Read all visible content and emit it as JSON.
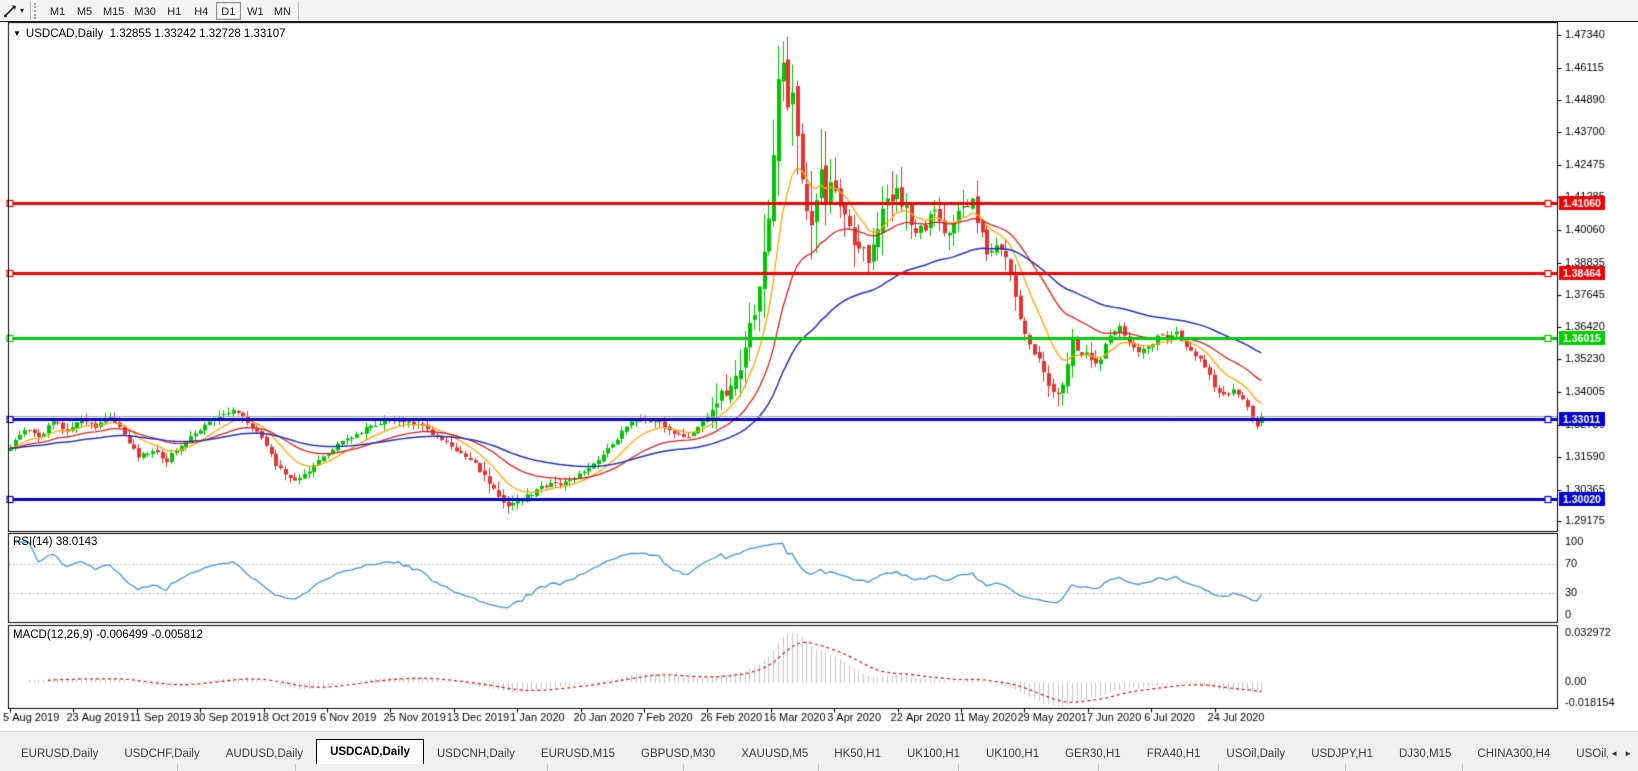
{
  "toolbar": {
    "cursor_tool_icon": "cursor-tool",
    "dropdown_caret": "▾",
    "timeframes": [
      "M1",
      "M5",
      "M15",
      "M30",
      "H1",
      "H4",
      "D1",
      "W1",
      "MN"
    ],
    "active_timeframe": "D1"
  },
  "chart": {
    "symbol_timeframe": "USDCAD,Daily",
    "ohlc_text": "1.32855 1.33242 1.32728 1.33107",
    "open": "1.32855",
    "high": "1.33242",
    "low": "1.32728",
    "close": "1.33107",
    "dropdown_icon": "▼"
  },
  "indicators": {
    "rsi": {
      "label": "RSI(14) 38.0143",
      "name": "RSI",
      "period": 14,
      "current": 38.0143,
      "axis_labels": [
        "100",
        "70",
        "30",
        "0"
      ],
      "level_values": [
        100,
        70,
        30,
        0
      ],
      "dashed_levels": [
        70,
        30
      ],
      "line_color": "#4494E2"
    },
    "macd": {
      "label": "MACD(12,26,9) -0.006499 -0.005812",
      "name": "MACD",
      "fast": 12,
      "slow": 26,
      "signal_period": 9,
      "current_macd": -0.006499,
      "current_signal": -0.005812,
      "axis_labels": [
        "0.032972",
        "0.00",
        "-0.018154"
      ],
      "axis_values": [
        0.032972,
        0.0,
        -0.018154
      ],
      "hist_color": "#c6c6c6",
      "signal_color": "#dd1111"
    }
  },
  "price_axis": {
    "ticks": [
      "1.47340",
      "1.46115",
      "1.44890",
      "1.43700",
      "1.42475",
      "1.41285",
      "1.40060",
      "1.38835",
      "1.37645",
      "1.36420",
      "1.35230",
      "1.34005",
      "1.32780",
      "1.31590",
      "1.30365",
      "1.29175"
    ],
    "tick_values": [
      1.4734,
      1.46115,
      1.4489,
      1.437,
      1.42475,
      1.41285,
      1.4006,
      1.38835,
      1.37645,
      1.3642,
      1.3523,
      1.34005,
      1.3278,
      1.3159,
      1.30365,
      1.29175
    ]
  },
  "date_axis": {
    "labels": [
      "5 Aug 2019",
      "23 Aug 2019",
      "11 Sep 2019",
      "30 Sep 2019",
      "18 Oct 2019",
      "6 Nov 2019",
      "25 Nov 2019",
      "13 Dec 2019",
      "1 Jan 2020",
      "20 Jan 2020",
      "7 Feb 2020",
      "26 Feb 2020",
      "16 Mar 2020",
      "3 Apr 2020",
      "22 Apr 2020",
      "11 May 2020",
      "29 May 2020",
      "17 Jun 2020",
      "6 Jul 2020",
      "24 Jul 2020"
    ]
  },
  "tab_bar": {
    "tabs": [
      "EURUSD,Daily",
      "USDCHF,Daily",
      "AUDUSD,Daily",
      "USDCAD,Daily",
      "USDCNH,Daily",
      "EURUSD,M15",
      "GBPUSD,M30",
      "XAUUSD,M5",
      "HK50,H1",
      "UK100,H1",
      "UK100,H1",
      "GER30,H1",
      "FRA40,H1",
      "USOil,Daily",
      "USDJPY,H1",
      "DJ30,M15",
      "CHINA300,H4",
      "USOil,H"
    ],
    "active_index": 3,
    "left_arrow": "◄",
    "right_arrow": "►"
  },
  "chart_data": {
    "type": "candlestick",
    "symbol": "USDCAD",
    "timeframe": "Daily",
    "title": "USDCAD,Daily",
    "x_range": [
      "5 Aug 2019",
      "7 Aug 2020"
    ],
    "ylim": [
      1.288,
      1.478
    ],
    "days_total": 265,
    "last_candle": {
      "open": 1.32855,
      "high": 1.33242,
      "low": 1.32728,
      "close": 1.33107
    },
    "bull_color": "#00C400",
    "bear_color": "#E23434",
    "close_anchors": [
      [
        0,
        1.3195
      ],
      [
        3,
        1.326
      ],
      [
        6,
        1.323
      ],
      [
        9,
        1.329
      ],
      [
        12,
        1.3255
      ],
      [
        15,
        1.3305
      ],
      [
        18,
        1.327
      ],
      [
        21,
        1.331
      ],
      [
        24,
        1.324
      ],
      [
        27,
        1.316
      ],
      [
        30,
        1.3185
      ],
      [
        33,
        1.3145
      ],
      [
        36,
        1.3205
      ],
      [
        40,
        1.326
      ],
      [
        44,
        1.331
      ],
      [
        47,
        1.3335
      ],
      [
        50,
        1.329
      ],
      [
        53,
        1.323
      ],
      [
        56,
        1.313
      ],
      [
        60,
        1.3065
      ],
      [
        63,
        1.3105
      ],
      [
        66,
        1.316
      ],
      [
        70,
        1.322
      ],
      [
        74,
        1.3255
      ],
      [
        78,
        1.3285
      ],
      [
        82,
        1.33
      ],
      [
        86,
        1.328
      ],
      [
        90,
        1.323
      ],
      [
        94,
        1.3185
      ],
      [
        98,
        1.313
      ],
      [
        102,
        1.3035
      ],
      [
        105,
        1.2975
      ],
      [
        108,
        1.3
      ],
      [
        112,
        1.305
      ],
      [
        116,
        1.3058
      ],
      [
        120,
        1.309
      ],
      [
        124,
        1.3145
      ],
      [
        128,
        1.323
      ],
      [
        131,
        1.329
      ],
      [
        134,
        1.33
      ],
      [
        137,
        1.3285
      ],
      [
        140,
        1.3245
      ],
      [
        143,
        1.323
      ],
      [
        146,
        1.3285
      ],
      [
        148,
        1.334
      ],
      [
        150,
        1.34
      ],
      [
        152,
        1.342
      ],
      [
        154,
        1.347
      ],
      [
        156,
        1.364
      ],
      [
        158,
        1.378
      ],
      [
        160,
        1.408
      ],
      [
        161,
        1.428
      ],
      [
        162,
        1.456
      ],
      [
        163,
        1.462
      ],
      [
        164,
        1.444
      ],
      [
        165,
        1.45
      ],
      [
        166,
        1.435
      ],
      [
        167,
        1.419
      ],
      [
        168,
        1.406
      ],
      [
        169,
        1.399
      ],
      [
        170,
        1.409
      ],
      [
        171,
        1.419
      ],
      [
        172,
        1.414
      ],
      [
        173,
        1.42
      ],
      [
        175,
        1.409
      ],
      [
        177,
        1.399
      ],
      [
        179,
        1.394
      ],
      [
        181,
        1.3905
      ],
      [
        183,
        1.403
      ],
      [
        185,
        1.412
      ],
      [
        187,
        1.416
      ],
      [
        189,
        1.407
      ],
      [
        191,
        1.3985
      ],
      [
        193,
        1.402
      ],
      [
        195,
        1.407
      ],
      [
        197,
        1.3975
      ],
      [
        199,
        1.403
      ],
      [
        201,
        1.409
      ],
      [
        203,
        1.411
      ],
      [
        205,
        1.399
      ],
      [
        206,
        1.392
      ],
      [
        208,
        1.3965
      ],
      [
        210,
        1.39
      ],
      [
        212,
        1.375
      ],
      [
        214,
        1.362
      ],
      [
        216,
        1.3555
      ],
      [
        218,
        1.348
      ],
      [
        220,
        1.339
      ],
      [
        222,
        1.343
      ],
      [
        224,
        1.358
      ],
      [
        226,
        1.3555
      ],
      [
        228,
        1.351
      ],
      [
        230,
        1.3535
      ],
      [
        232,
        1.3615
      ],
      [
        234,
        1.365
      ],
      [
        236,
        1.358
      ],
      [
        238,
        1.3545
      ],
      [
        240,
        1.3565
      ],
      [
        242,
        1.361
      ],
      [
        244,
        1.36
      ],
      [
        246,
        1.362
      ],
      [
        248,
        1.357
      ],
      [
        250,
        1.354
      ],
      [
        252,
        1.35
      ],
      [
        254,
        1.3415
      ],
      [
        256,
        1.3385
      ],
      [
        258,
        1.3405
      ],
      [
        260,
        1.337
      ],
      [
        261,
        1.334
      ],
      [
        262,
        1.33
      ],
      [
        263,
        1.3268
      ],
      [
        264,
        1.33107
      ]
    ],
    "moving_averages": [
      {
        "name": "fast-ma",
        "period": 10,
        "color": "#FFA500"
      },
      {
        "name": "medium-ma",
        "period": 25,
        "color": "#E02020"
      },
      {
        "name": "slow-ma",
        "period": 55,
        "color": "#2433C0"
      }
    ],
    "horizontal_lines": [
      {
        "value": 1.4106,
        "label": "1.41060",
        "color": "#F00000",
        "width": 3
      },
      {
        "value": 1.38464,
        "label": "1.38464",
        "color": "#F00000",
        "width": 3
      },
      {
        "value": 1.36015,
        "label": "1.36015",
        "color": "#00CC00",
        "width": 3
      },
      {
        "value": 1.33011,
        "label": "1.33011",
        "color": "#0000D8",
        "width": 3
      },
      {
        "value": 1.3002,
        "label": "1.30020",
        "color": "#0000D8",
        "width": 3
      }
    ],
    "bid_line": {
      "value": 1.33107,
      "color": "#aaaaaa"
    }
  }
}
